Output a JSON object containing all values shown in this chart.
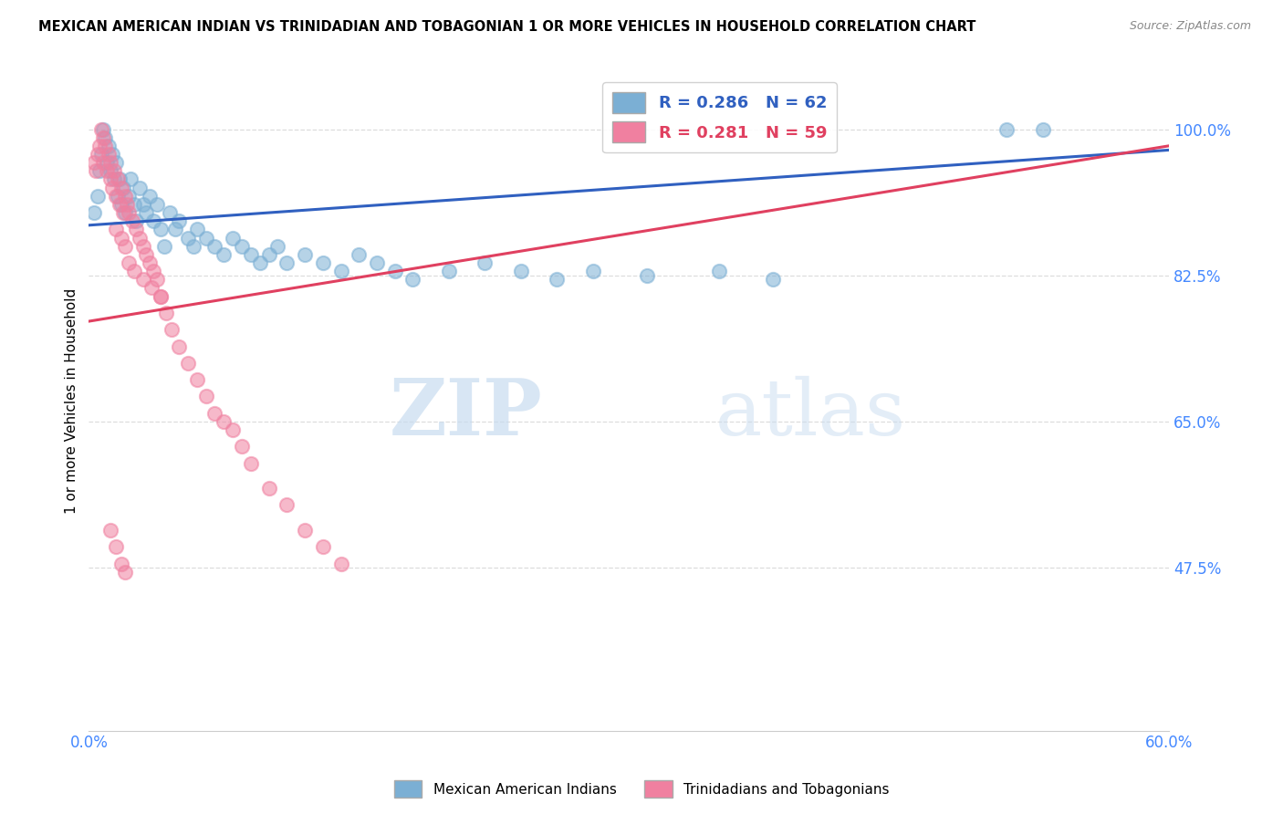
{
  "title": "MEXICAN AMERICAN INDIAN VS TRINIDADIAN AND TOBAGONIAN 1 OR MORE VEHICLES IN HOUSEHOLD CORRELATION CHART",
  "source": "Source: ZipAtlas.com",
  "ylabel": "1 or more Vehicles in Household",
  "yticks": [
    47.5,
    65.0,
    82.5,
    100.0
  ],
  "ytick_labels": [
    "47.5%",
    "65.0%",
    "82.5%",
    "100.0%"
  ],
  "watermark_zip": "ZIP",
  "watermark_atlas": "atlas",
  "legend_blue_label": "R = 0.286   N = 62",
  "legend_pink_label": "R = 0.281   N = 59",
  "legend_bottom_blue": "Mexican American Indians",
  "legend_bottom_pink": "Trinidadians and Tobagonians",
  "blue_color": "#7BAFD4",
  "pink_color": "#F080A0",
  "blue_line_color": "#3060C0",
  "pink_line_color": "#E04060",
  "axis_color": "#4488FF",
  "xmin": 0.0,
  "xmax": 0.6,
  "ymin": 28.0,
  "ymax": 107.0,
  "blue_scatter_x": [
    0.003,
    0.005,
    0.006,
    0.007,
    0.008,
    0.009,
    0.01,
    0.011,
    0.012,
    0.013,
    0.014,
    0.015,
    0.016,
    0.017,
    0.018,
    0.019,
    0.02,
    0.022,
    0.023,
    0.025,
    0.026,
    0.028,
    0.03,
    0.032,
    0.034,
    0.036,
    0.038,
    0.04,
    0.042,
    0.045,
    0.048,
    0.05,
    0.055,
    0.058,
    0.06,
    0.065,
    0.07,
    0.075,
    0.08,
    0.085,
    0.09,
    0.095,
    0.1,
    0.105,
    0.11,
    0.12,
    0.13,
    0.14,
    0.15,
    0.16,
    0.17,
    0.18,
    0.2,
    0.22,
    0.24,
    0.26,
    0.28,
    0.31,
    0.35,
    0.38,
    0.51,
    0.53
  ],
  "blue_scatter_y": [
    90.0,
    92.0,
    95.0,
    97.0,
    100.0,
    99.0,
    96.0,
    98.0,
    95.0,
    97.0,
    94.0,
    96.0,
    92.0,
    94.0,
    91.0,
    93.0,
    90.0,
    92.0,
    94.0,
    91.0,
    89.0,
    93.0,
    91.0,
    90.0,
    92.0,
    89.0,
    91.0,
    88.0,
    86.0,
    90.0,
    88.0,
    89.0,
    87.0,
    86.0,
    88.0,
    87.0,
    86.0,
    85.0,
    87.0,
    86.0,
    85.0,
    84.0,
    85.0,
    86.0,
    84.0,
    85.0,
    84.0,
    83.0,
    85.0,
    84.0,
    83.0,
    82.0,
    83.0,
    84.0,
    83.0,
    82.0,
    83.0,
    82.5,
    83.0,
    82.0,
    100.0,
    100.0
  ],
  "pink_scatter_x": [
    0.003,
    0.004,
    0.005,
    0.006,
    0.007,
    0.008,
    0.008,
    0.009,
    0.01,
    0.011,
    0.012,
    0.012,
    0.013,
    0.014,
    0.015,
    0.016,
    0.017,
    0.018,
    0.019,
    0.02,
    0.021,
    0.022,
    0.024,
    0.026,
    0.028,
    0.03,
    0.032,
    0.034,
    0.036,
    0.038,
    0.04,
    0.043,
    0.046,
    0.05,
    0.055,
    0.06,
    0.065,
    0.07,
    0.075,
    0.08,
    0.085,
    0.09,
    0.1,
    0.11,
    0.12,
    0.13,
    0.14,
    0.015,
    0.018,
    0.02,
    0.022,
    0.025,
    0.03,
    0.035,
    0.04,
    0.012,
    0.015,
    0.018,
    0.02
  ],
  "pink_scatter_y": [
    96.0,
    95.0,
    97.0,
    98.0,
    100.0,
    99.0,
    96.0,
    98.0,
    95.0,
    97.0,
    94.0,
    96.0,
    93.0,
    95.0,
    92.0,
    94.0,
    91.0,
    93.0,
    90.0,
    92.0,
    91.0,
    90.0,
    89.0,
    88.0,
    87.0,
    86.0,
    85.0,
    84.0,
    83.0,
    82.0,
    80.0,
    78.0,
    76.0,
    74.0,
    72.0,
    70.0,
    68.0,
    66.0,
    65.0,
    64.0,
    62.0,
    60.0,
    57.0,
    55.0,
    52.0,
    50.0,
    48.0,
    88.0,
    87.0,
    86.0,
    84.0,
    83.0,
    82.0,
    81.0,
    80.0,
    52.0,
    50.0,
    48.0,
    47.0
  ],
  "blue_line_x0": 0.0,
  "blue_line_x1": 0.6,
  "blue_line_y0": 88.5,
  "blue_line_y1": 97.5,
  "pink_line_x0": 0.0,
  "pink_line_x1": 0.6,
  "pink_line_y0": 77.0,
  "pink_line_y1": 98.0
}
